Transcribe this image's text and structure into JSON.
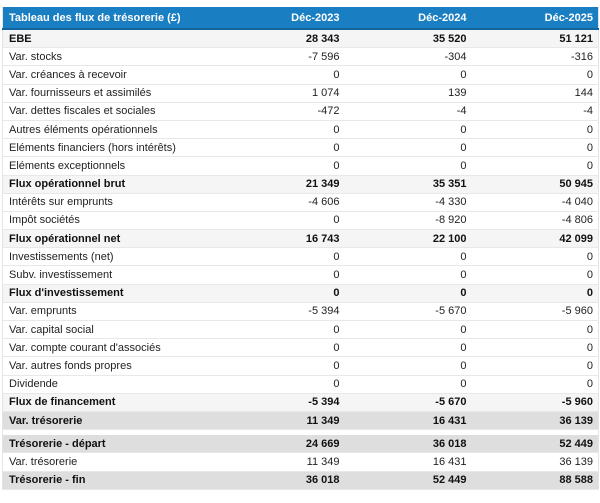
{
  "table": {
    "header": {
      "label": "Tableau des flux de trésorerie (£)",
      "columns": [
        "Déc-2023",
        "Déc-2024",
        "Déc-2025"
      ]
    },
    "rows": [
      {
        "label": "EBE",
        "values": [
          "28 343",
          "35 520",
          "51 121"
        ],
        "style": "subtotal"
      },
      {
        "label": "Var. stocks",
        "values": [
          "-7 596",
          "-304",
          "-316"
        ],
        "style": "normal"
      },
      {
        "label": "Var. créances à recevoir",
        "values": [
          "0",
          "0",
          "0"
        ],
        "style": "normal"
      },
      {
        "label": "Var. fournisseurs et assimilés",
        "values": [
          "1 074",
          "139",
          "144"
        ],
        "style": "normal"
      },
      {
        "label": "Var. dettes fiscales et sociales",
        "values": [
          "-472",
          "-4",
          "-4"
        ],
        "style": "normal"
      },
      {
        "label": "Autres éléments opérationnels",
        "values": [
          "0",
          "0",
          "0"
        ],
        "style": "normal"
      },
      {
        "label": "Eléments financiers (hors intérêts)",
        "values": [
          "0",
          "0",
          "0"
        ],
        "style": "normal"
      },
      {
        "label": "Eléments exceptionnels",
        "values": [
          "0",
          "0",
          "0"
        ],
        "style": "normal"
      },
      {
        "label": "Flux opérationnel brut",
        "values": [
          "21 349",
          "35 351",
          "50 945"
        ],
        "style": "subtotal"
      },
      {
        "label": "Intérêts sur emprunts",
        "values": [
          "-4 606",
          "-4 330",
          "-4 040"
        ],
        "style": "normal"
      },
      {
        "label": "Impôt sociétés",
        "values": [
          "0",
          "-8 920",
          "-4 806"
        ],
        "style": "normal"
      },
      {
        "label": "Flux opérationnel net",
        "values": [
          "16 743",
          "22 100",
          "42 099"
        ],
        "style": "subtotal"
      },
      {
        "label": "Investissements (net)",
        "values": [
          "0",
          "0",
          "0"
        ],
        "style": "normal"
      },
      {
        "label": "Subv. investissement",
        "values": [
          "0",
          "0",
          "0"
        ],
        "style": "normal"
      },
      {
        "label": "Flux d'investissement",
        "values": [
          "0",
          "0",
          "0"
        ],
        "style": "subtotal"
      },
      {
        "label": "Var. emprunts",
        "values": [
          "-5 394",
          "-5 670",
          "-5 960"
        ],
        "style": "normal"
      },
      {
        "label": "Var. capital social",
        "values": [
          "0",
          "0",
          "0"
        ],
        "style": "normal"
      },
      {
        "label": "Var. compte courant d'associés",
        "values": [
          "0",
          "0",
          "0"
        ],
        "style": "normal"
      },
      {
        "label": "Var. autres fonds propres",
        "values": [
          "0",
          "0",
          "0"
        ],
        "style": "normal"
      },
      {
        "label": "Dividende",
        "values": [
          "0",
          "0",
          "0"
        ],
        "style": "normal"
      },
      {
        "label": "Flux de financement",
        "values": [
          "-5 394",
          "-5 670",
          "-5 960"
        ],
        "style": "subtotal"
      },
      {
        "label": "Var. trésorerie",
        "values": [
          "11 349",
          "16 431",
          "36 139"
        ],
        "style": "total"
      },
      {
        "label": "Trésorerie - départ",
        "values": [
          "24 669",
          "36 018",
          "52 449"
        ],
        "style": "total",
        "section_gap": true
      },
      {
        "label": "Var. trésorerie",
        "values": [
          "11 349",
          "16 431",
          "36 139"
        ],
        "style": "normal"
      },
      {
        "label": "Trésorerie - fin",
        "values": [
          "36 018",
          "52 449",
          "88 588"
        ],
        "style": "total"
      }
    ],
    "colors": {
      "header_bg": "#1a7ec2",
      "header_text": "#ffffff",
      "header_border": "#13639c",
      "subtotal_bg": "#f5f5f5",
      "total_bg": "#dedede",
      "row_border": "#e8e8e8",
      "outer_border": "#e4e4e4",
      "text": "#222222",
      "text_strong": "#111111"
    }
  }
}
